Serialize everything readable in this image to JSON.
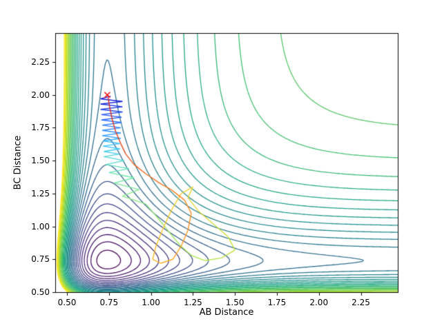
{
  "chart_data": {
    "type": "contour",
    "title": "",
    "xlabel": "AB Distance",
    "ylabel": "BC Distance",
    "xlim": [
      0.43,
      2.47
    ],
    "ylim": [
      0.5,
      2.47
    ],
    "xticks": [
      0.5,
      0.75,
      1.0,
      1.25,
      1.5,
      1.75,
      2.0,
      2.25
    ],
    "xtick_labels": [
      "0.50",
      "0.75",
      "1.00",
      "1.25",
      "1.50",
      "1.75",
      "2.00",
      "2.25"
    ],
    "yticks": [
      0.5,
      0.75,
      1.0,
      1.25,
      1.5,
      1.75,
      2.0,
      2.25
    ],
    "ytick_labels": [
      "0.50",
      "0.75",
      "1.00",
      "1.25",
      "1.50",
      "1.75",
      "2.00",
      "2.25"
    ],
    "grid": false,
    "legend": null,
    "colormap": "viridis",
    "potential_surface": {
      "model": "sum of Morse potentials: V(rAB,rBC) = M(rAB) + M(rBC), M(r) = (1 - exp(-a*(r - re)))^2 - 1",
      "a": 3.2,
      "re": 0.74,
      "levels": {
        "min": -1.95,
        "max": 0.6,
        "count": 31
      }
    },
    "trajectory": {
      "description": "collision trajectory colored from blue (start) to red (end)",
      "color_start": "#1515cc",
      "color_end": "#d42020",
      "points": [
        [
          0.76,
          1.99
        ],
        [
          0.7,
          1.97
        ],
        [
          0.83,
          1.95
        ],
        [
          0.7,
          1.93
        ],
        [
          0.83,
          1.91
        ],
        [
          0.7,
          1.89
        ],
        [
          0.83,
          1.87
        ],
        [
          0.705,
          1.85
        ],
        [
          0.825,
          1.83
        ],
        [
          0.705,
          1.81
        ],
        [
          0.825,
          1.79
        ],
        [
          0.71,
          1.77
        ],
        [
          0.82,
          1.75
        ],
        [
          0.71,
          1.73
        ],
        [
          0.82,
          1.71
        ],
        [
          0.71,
          1.69
        ],
        [
          0.82,
          1.67
        ],
        [
          0.715,
          1.65
        ],
        [
          0.815,
          1.63
        ],
        [
          0.715,
          1.61
        ],
        [
          0.815,
          1.59
        ],
        [
          0.72,
          1.57
        ],
        [
          0.81,
          1.55
        ],
        [
          0.72,
          1.53
        ],
        [
          0.84,
          1.5
        ],
        [
          0.73,
          1.47
        ],
        [
          0.87,
          1.44
        ],
        [
          0.75,
          1.41
        ],
        [
          0.9,
          1.37
        ],
        [
          0.78,
          1.33
        ],
        [
          0.93,
          1.28
        ],
        [
          0.83,
          1.23
        ],
        [
          0.97,
          1.17
        ],
        [
          1.03,
          1.08
        ],
        [
          1.1,
          0.97
        ],
        [
          1.17,
          0.86
        ],
        [
          1.24,
          0.78
        ],
        [
          1.32,
          0.74
        ],
        [
          1.42,
          0.76
        ],
        [
          1.5,
          0.82
        ],
        [
          1.46,
          0.92
        ],
        [
          1.37,
          1.02
        ],
        [
          1.28,
          1.12
        ],
        [
          1.22,
          1.22
        ],
        [
          1.25,
          1.3
        ],
        [
          1.18,
          1.25
        ],
        [
          1.12,
          1.12
        ],
        [
          1.07,
          0.98
        ],
        [
          1.03,
          0.85
        ],
        [
          1.01,
          0.75
        ],
        [
          1.06,
          0.72
        ],
        [
          1.13,
          0.75
        ],
        [
          1.18,
          0.85
        ],
        [
          1.22,
          0.97
        ],
        [
          1.24,
          1.1
        ],
        [
          1.2,
          1.2
        ],
        [
          1.12,
          1.28
        ],
        [
          1.05,
          1.33
        ],
        [
          0.97,
          1.4
        ],
        [
          0.9,
          1.47
        ],
        [
          0.85,
          1.55
        ],
        [
          0.82,
          1.63
        ],
        [
          0.79,
          1.72
        ],
        [
          0.77,
          1.81
        ],
        [
          0.755,
          1.9
        ],
        [
          0.745,
          1.98
        ]
      ],
      "marker": {
        "x": 0.74,
        "y": 2.0,
        "symbol": "x",
        "color": "#ff0000"
      }
    }
  }
}
